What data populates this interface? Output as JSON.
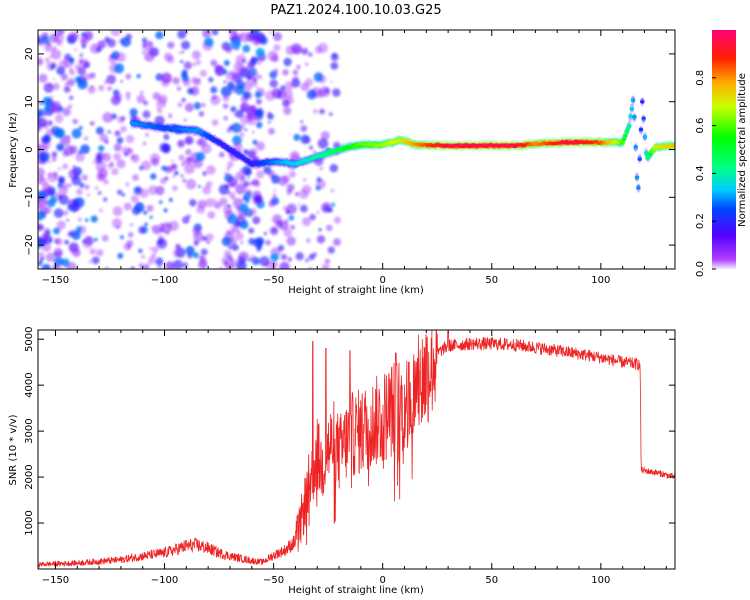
{
  "page_title": "PAZ1.2024.100.10.03.G25",
  "chart_data": [
    {
      "type": "heatmap",
      "xlabel": "Height of straight line (km)",
      "ylabel": "Frequency (Hz)",
      "xlim": [
        -158,
        134
      ],
      "ylim": [
        -25,
        25
      ],
      "x_ticks": [
        -150,
        -100,
        -50,
        0,
        50,
        100
      ],
      "y_ticks": [
        -20,
        -10,
        0,
        10,
        20
      ],
      "colorbar": {
        "label": "Normalized spectral amplitude",
        "range": [
          0,
          1
        ],
        "ticks": [
          0.0,
          0.2,
          0.4,
          0.6,
          0.8
        ],
        "colormap": "gist_rainbow (violet-blue-cyan-green-yellow-red-magenta)"
      },
      "ridge": {
        "description": "dominant frequency ridge",
        "points": [
          {
            "x": -115,
            "y": 5.5,
            "amp": 0.3
          },
          {
            "x": -100,
            "y": 4.5,
            "amp": 0.25
          },
          {
            "x": -85,
            "y": 4,
            "amp": 0.3
          },
          {
            "x": -75,
            "y": 1.5,
            "amp": 0.2
          },
          {
            "x": -60,
            "y": -3,
            "amp": 0.2
          },
          {
            "x": -48,
            "y": -2.5,
            "amp": 0.3
          },
          {
            "x": -40,
            "y": -3,
            "amp": 0.35
          },
          {
            "x": -30,
            "y": -1.5,
            "amp": 0.4
          },
          {
            "x": -20,
            "y": 0,
            "amp": 0.5
          },
          {
            "x": -10,
            "y": 1,
            "amp": 0.6
          },
          {
            "x": 0,
            "y": 1,
            "amp": 0.65
          },
          {
            "x": 8,
            "y": 2,
            "amp": 0.7
          },
          {
            "x": 15,
            "y": 1,
            "amp": 0.8
          },
          {
            "x": 30,
            "y": 0.8,
            "amp": 0.95
          },
          {
            "x": 50,
            "y": 0.8,
            "amp": 0.95
          },
          {
            "x": 62,
            "y": 0.8,
            "amp": 0.95
          },
          {
            "x": 70,
            "y": 1.2,
            "amp": 0.8
          },
          {
            "x": 85,
            "y": 1.5,
            "amp": 0.95
          },
          {
            "x": 100,
            "y": 1.5,
            "amp": 0.85
          },
          {
            "x": 110,
            "y": 1.5,
            "amp": 0.6
          },
          {
            "x": 113,
            "y": 5,
            "amp": 0.4
          },
          {
            "x": 115,
            "y": 11,
            "amp": 0.3
          },
          {
            "x": 117,
            "y": -10,
            "amp": 0.3
          },
          {
            "x": 119,
            "y": 10,
            "amp": 0.2
          },
          {
            "x": 121,
            "y": -2,
            "amp": 0.4
          },
          {
            "x": 125,
            "y": 0.5,
            "amp": 0.7
          },
          {
            "x": 134,
            "y": 0.8,
            "amp": 0.75
          }
        ]
      },
      "noise_region": {
        "x_range": [
          -158,
          -20
        ],
        "y_range": [
          -25,
          25
        ],
        "amp_range": [
          0.05,
          0.3
        ]
      }
    },
    {
      "type": "line",
      "xlabel": "Height of straight line (km)",
      "ylabel": "SNR (10 * v/v)",
      "xlim": [
        -158,
        134
      ],
      "ylim": [
        0,
        5200
      ],
      "x_ticks": [
        -150,
        -100,
        -50,
        0,
        50,
        100
      ],
      "y_ticks": [
        1000,
        2000,
        3000,
        4000,
        5000
      ],
      "color": "#ee2222",
      "series": [
        {
          "x": [
            -158,
            -140,
            -120,
            -110,
            -100,
            -95,
            -90,
            -85,
            -80,
            -75,
            -70,
            -60,
            -55,
            -50,
            -45,
            -40,
            -38,
            -35,
            -32,
            -30,
            -28,
            -25,
            -22,
            -20,
            -15,
            -10,
            -5,
            0,
            5,
            10,
            15,
            20,
            25,
            30,
            40,
            50,
            60,
            70,
            80,
            90,
            100,
            110,
            118,
            118.5,
            125,
            134
          ],
          "y": [
            100,
            130,
            200,
            280,
            350,
            420,
            500,
            520,
            450,
            350,
            280,
            180,
            150,
            300,
            400,
            600,
            900,
            1600,
            2200,
            2500,
            2200,
            2600,
            2800,
            2500,
            2900,
            3000,
            3150,
            3300,
            3500,
            3600,
            3800,
            4300,
            4700,
            4850,
            4900,
            4900,
            4880,
            4820,
            4750,
            4680,
            4600,
            4500,
            4450,
            2150,
            2100,
            2000
          ]
        }
      ],
      "spikes": [
        {
          "x": -32,
          "y": 4950
        },
        {
          "x": -26,
          "y": 4800
        },
        {
          "x": -15,
          "y": 4750
        },
        {
          "x": 6,
          "y": 4700
        },
        {
          "x": 12,
          "y": 4500
        },
        {
          "x": 30,
          "y": 5150
        }
      ]
    }
  ]
}
